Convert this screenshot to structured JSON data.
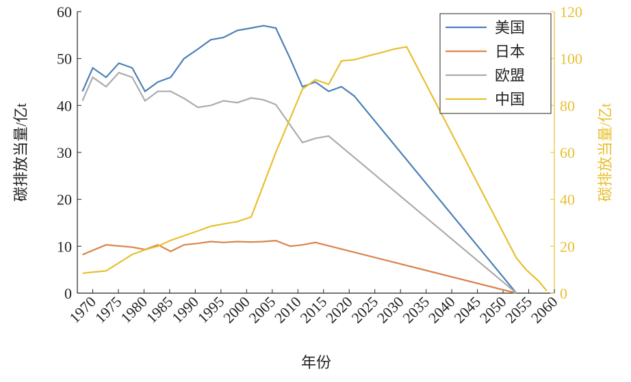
{
  "chart_data": {
    "type": "line",
    "x_label": "年份",
    "y_label": "碳排放当量/亿t",
    "y2_label": "碳排放当量/亿t",
    "xlim": [
      1967,
      2060
    ],
    "xticks": [
      1970,
      1975,
      1980,
      1985,
      1990,
      1995,
      2000,
      2005,
      2010,
      2015,
      2020,
      2025,
      2030,
      2035,
      2040,
      2045,
      2050,
      2055,
      2060
    ],
    "ylim": [
      0,
      60
    ],
    "yticks": [
      0,
      10,
      20,
      30,
      40,
      50,
      60
    ],
    "y2lim": [
      0,
      120
    ],
    "y2ticks": [
      0,
      20,
      40,
      60,
      80,
      100,
      120
    ],
    "y2_color": "#e8bf2e",
    "legend": "upper right",
    "series": [
      {
        "name": "美国",
        "color": "#4a7fb5",
        "x": [
          1968,
          1970,
          1972.6,
          1975.1,
          1977.7,
          1980.2,
          1982.7,
          1985.2,
          1987.8,
          1990.5,
          1993,
          1995.5,
          1998.2,
          2000.9,
          2003.3,
          2005.7,
          2008.5,
          2010.9,
          2013.4,
          2016,
          2018.5,
          2021,
          2052.6
        ],
        "values": [
          43,
          48,
          46,
          49,
          48,
          43,
          45,
          46,
          50,
          52,
          54,
          54.5,
          56,
          56.5,
          57,
          56.5,
          50,
          44,
          45,
          43,
          44,
          42,
          0
        ]
      },
      {
        "name": "日本",
        "color": "#d9834a",
        "x": [
          1968,
          1972.6,
          1977.7,
          1980.2,
          1982.7,
          1985.2,
          1987.8,
          1990.5,
          1993,
          1995.5,
          1998.2,
          2000.9,
          2003.3,
          2005.7,
          2008.5,
          2010.9,
          2013.4,
          2052.6
        ],
        "values": [
          8.2,
          10.3,
          9.8,
          9.3,
          10.3,
          8.9,
          10.3,
          10.6,
          11,
          10.8,
          11,
          10.9,
          11,
          11.2,
          10,
          10.3,
          10.8,
          0
        ]
      },
      {
        "name": "欧盟",
        "color": "#ababab",
        "x": [
          1968,
          1970,
          1972.6,
          1975.1,
          1977.7,
          1980.2,
          1982.7,
          1985.2,
          1987.8,
          1990.5,
          1993,
          1995.5,
          1998.2,
          2000.9,
          2003.3,
          2005.7,
          2010.9,
          2013.4,
          2016,
          2052.6
        ],
        "values": [
          41,
          46,
          44,
          47,
          46,
          41,
          43,
          43,
          41.5,
          39.6,
          40,
          41,
          40.6,
          41.6,
          41.2,
          40.2,
          32.1,
          33,
          33.5,
          0
        ]
      },
      {
        "name": "中国",
        "color": "#e8bf2e",
        "axis": "y2",
        "x": [
          1968,
          1972.6,
          1977.7,
          1980.2,
          1982.7,
          1985.2,
          1987.8,
          1990.5,
          1993,
          1995.5,
          1998.2,
          2000.9,
          2005.7,
          2010.9,
          2013.4,
          2016,
          2018.5,
          2021,
          2023.5,
          2026.2,
          2028.7,
          2031.2,
          2052.6,
          2054.5,
          2057,
          2058.5
        ],
        "values": [
          8.5,
          9.5,
          16.5,
          18.5,
          20,
          22.5,
          24.5,
          26.5,
          28.5,
          29.5,
          30.5,
          32.5,
          60,
          87,
          91,
          89,
          99,
          99.5,
          101,
          102.5,
          104,
          105,
          15,
          10,
          5,
          1
        ]
      }
    ]
  }
}
